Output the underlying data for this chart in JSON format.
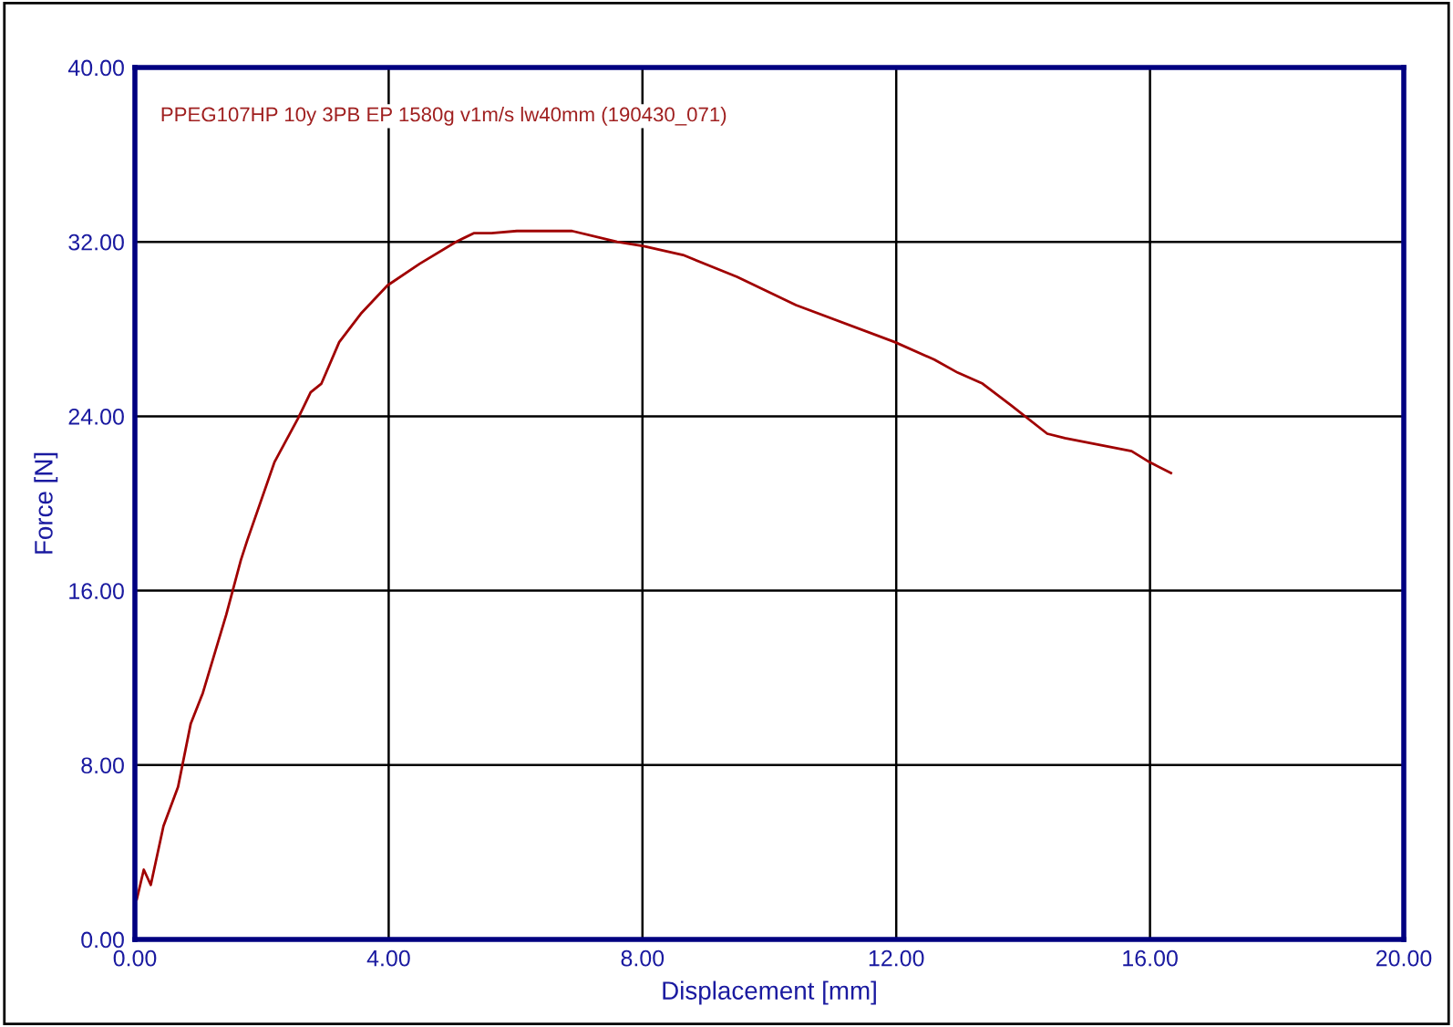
{
  "chart_data": {
    "type": "line",
    "xlabel": "Displacement [mm]",
    "ylabel": "Force [N]",
    "annotations": [
      "PPEG107HP 10y 3PB EP 1580g v1m/s lw40mm (190430_071)"
    ],
    "x": [
      0.03,
      0.14,
      0.25,
      0.45,
      0.68,
      0.88,
      1.07,
      1.44,
      1.67,
      1.77,
      2.2,
      2.57,
      2.77,
      2.94,
      3.22,
      3.56,
      3.98,
      4.49,
      5.06,
      5.34,
      5.62,
      6.02,
      6.89,
      7.6,
      8.02,
      8.64,
      9.49,
      10.42,
      11.98,
      12.6,
      12.97,
      13.36,
      13.81,
      14.38,
      14.66,
      15.71,
      15.99,
      16.33
    ],
    "series": [
      {
        "color": "#a00000",
        "values": [
          1.85,
          3.2,
          2.5,
          5.2,
          7.0,
          9.9,
          11.3,
          14.9,
          17.4,
          18.3,
          21.9,
          23.9,
          25.1,
          25.5,
          27.4,
          28.7,
          30.0,
          31.0,
          32.0,
          32.4,
          32.4,
          32.5,
          32.5,
          32.0,
          31.8,
          31.4,
          30.4,
          29.1,
          27.4,
          26.6,
          26.0,
          25.5,
          24.5,
          23.2,
          23.0,
          22.4,
          21.9,
          21.4
        ]
      }
    ],
    "xlim": [
      0,
      20
    ],
    "ylim": [
      0,
      40
    ],
    "xticks": [
      {
        "value": 0,
        "label": "0.00"
      },
      {
        "value": 4,
        "label": "4.00"
      },
      {
        "value": 8,
        "label": "8.00"
      },
      {
        "value": 12,
        "label": "12.00"
      },
      {
        "value": 16,
        "label": "16.00"
      },
      {
        "value": 20,
        "label": "20.00"
      }
    ],
    "yticks": [
      {
        "value": 0,
        "label": "0.00"
      },
      {
        "value": 8,
        "label": "8.00"
      },
      {
        "value": 16,
        "label": "16.00"
      },
      {
        "value": 24,
        "label": "24.00"
      },
      {
        "value": 32,
        "label": "32.00"
      },
      {
        "value": 40,
        "label": "40.00"
      }
    ],
    "grid": true
  }
}
